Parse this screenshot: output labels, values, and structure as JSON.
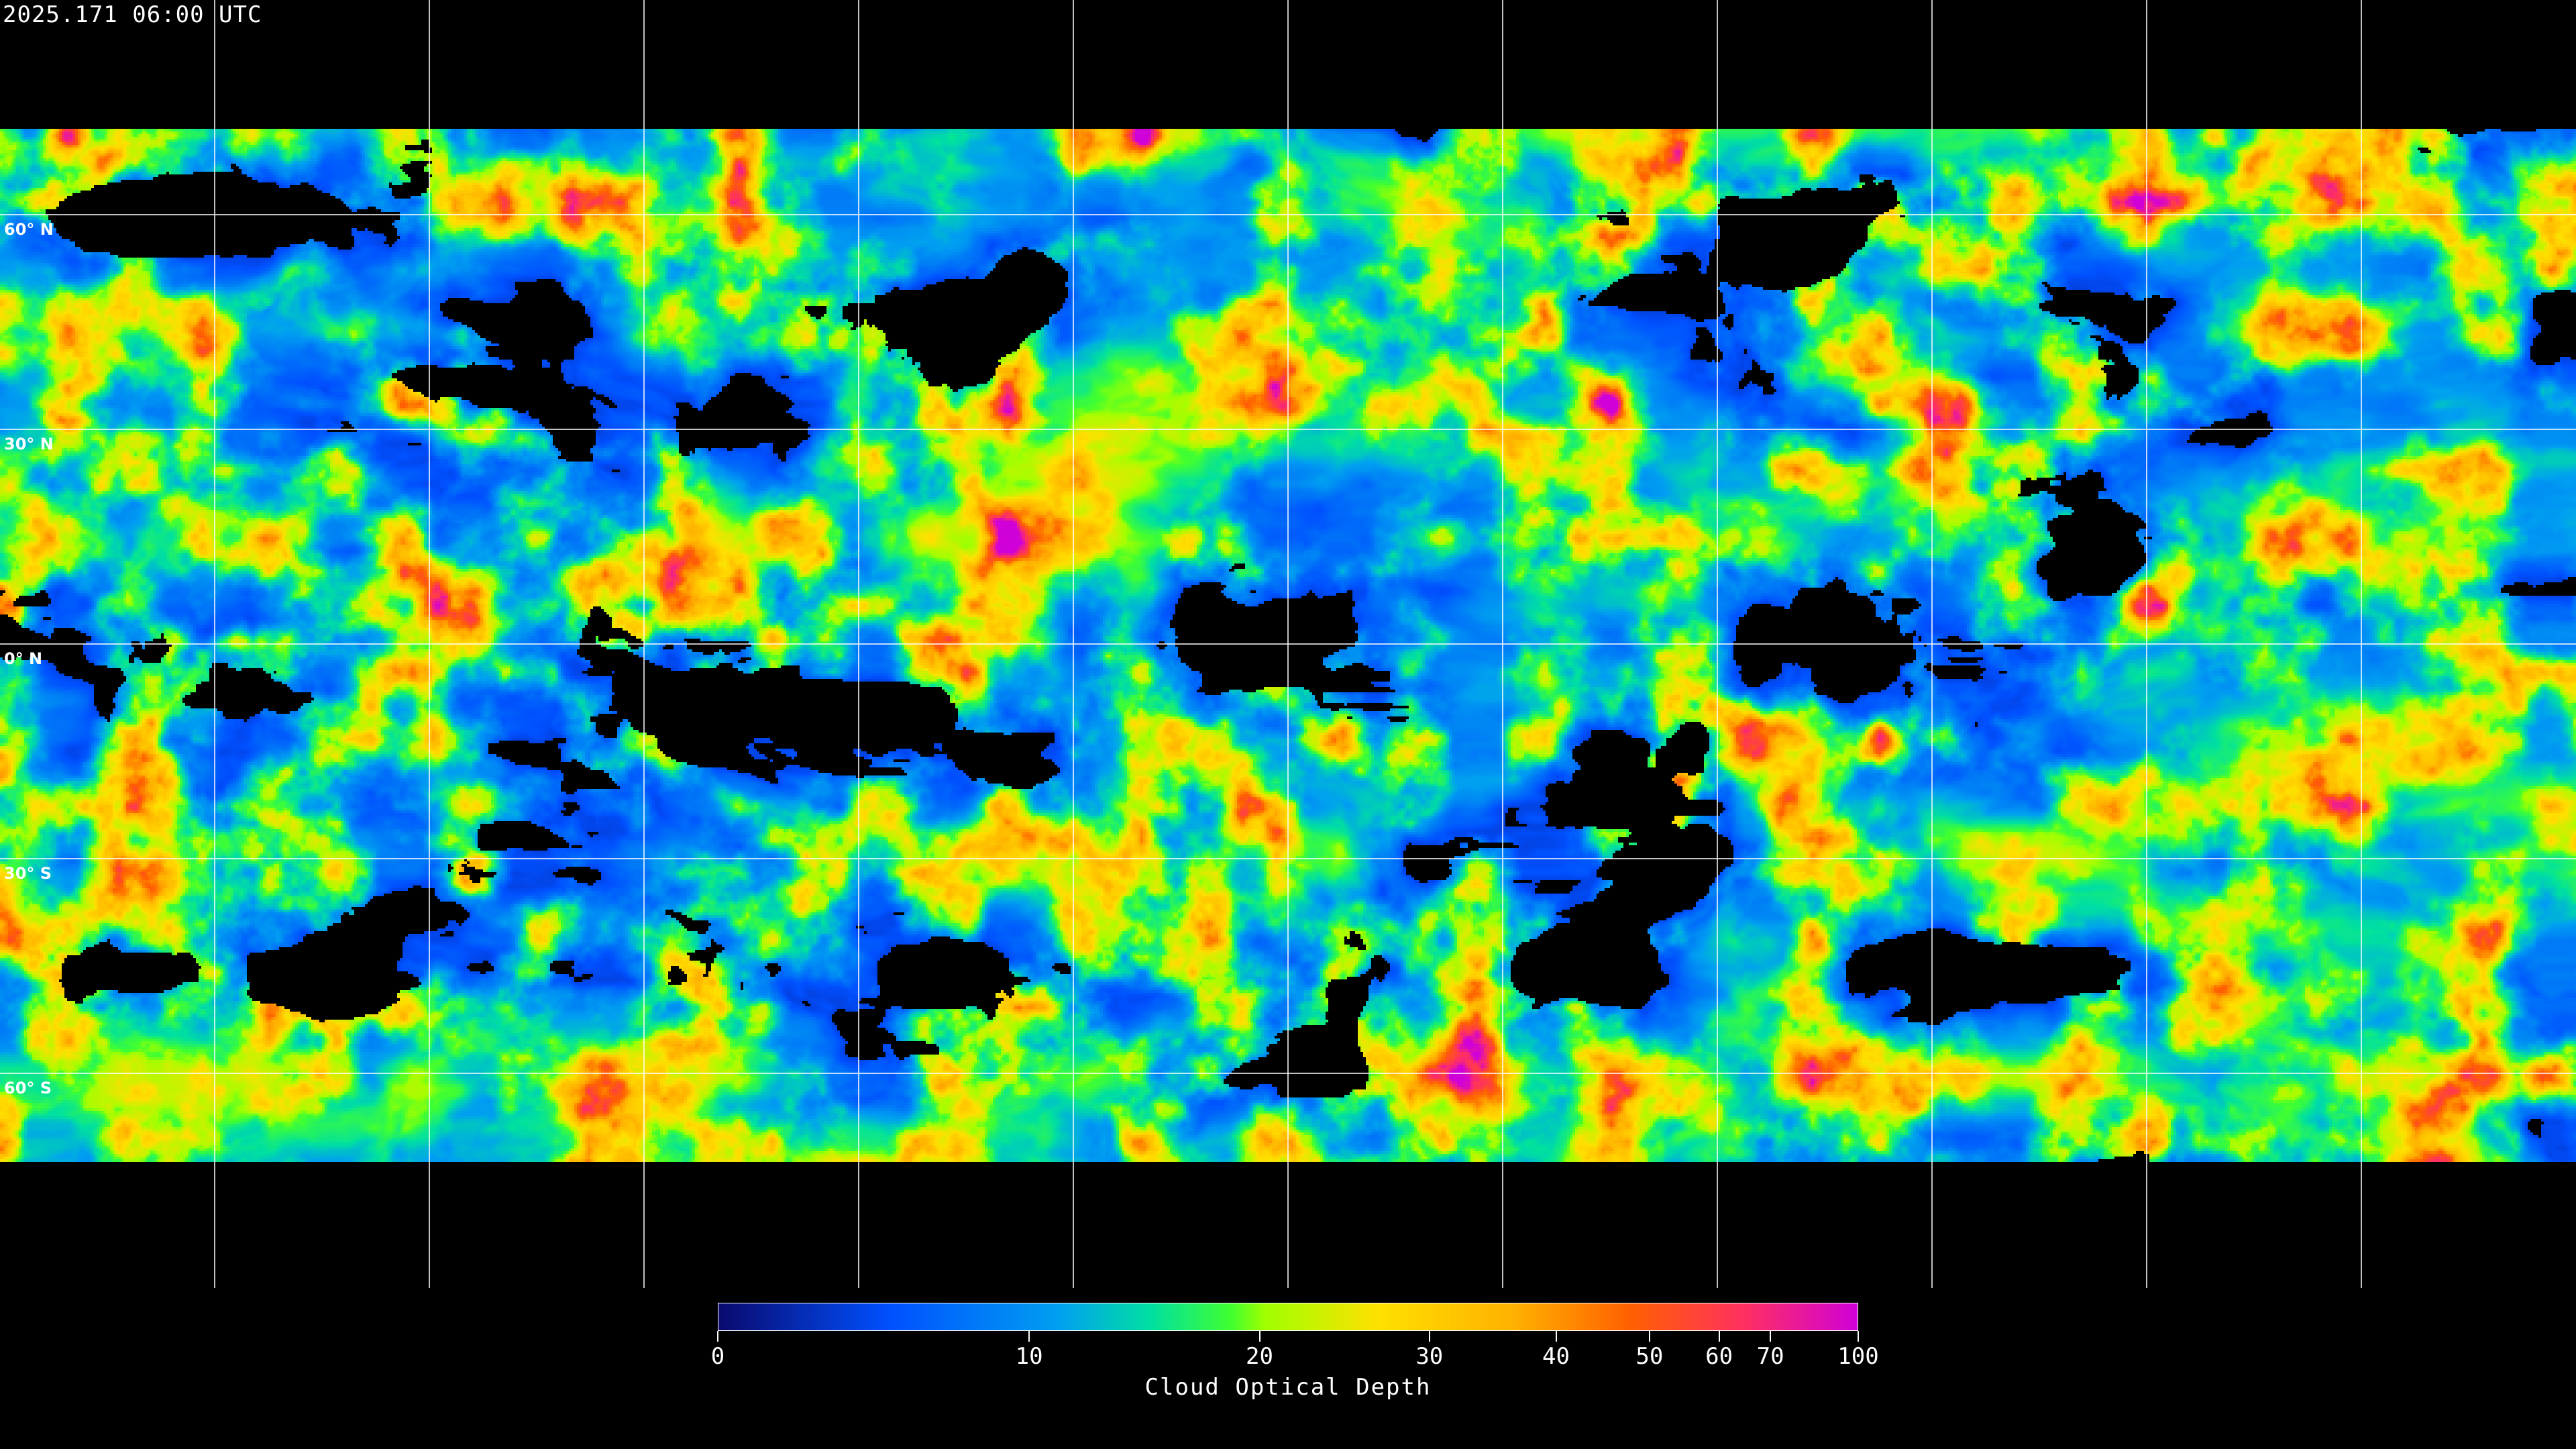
{
  "title": "2025.171 06:00 UTC",
  "map": {
    "projection": "equirectangular",
    "graticule_step_deg": 30,
    "lat_labels": [
      "60° N",
      "30° N",
      "0° N",
      "30° S",
      "60° S"
    ],
    "lat_values": [
      60,
      30,
      0,
      -30,
      -60
    ]
  },
  "colorbar": {
    "label": "Cloud Optical Depth",
    "range": [
      0,
      100
    ],
    "ticks": [
      "0",
      "10",
      "20",
      "30",
      "40",
      "50",
      "60",
      "70",
      "100"
    ],
    "colors": [
      "#0a0a6e",
      "#0050ff",
      "#00a0f0",
      "#00e0a0",
      "#40ff30",
      "#a0ff00",
      "#ffe000",
      "#ffb000",
      "#ff6000",
      "#ff3060",
      "#d000d8"
    ]
  }
}
